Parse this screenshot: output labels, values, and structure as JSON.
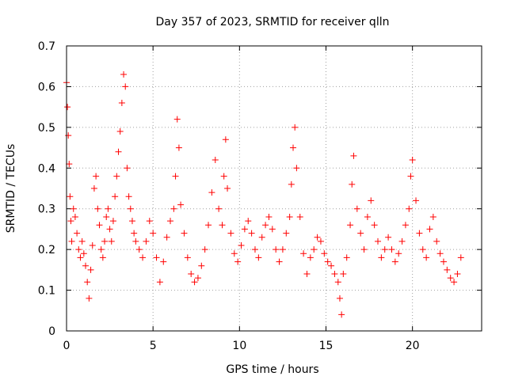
{
  "chart_data": {
    "type": "scatter",
    "title": "Day 357 of 2023, SRMTID for receiver qlln",
    "xlabel": "GPS time / hours",
    "ylabel": "SRMTID / TECUs",
    "xlim": [
      0,
      24
    ],
    "ylim": [
      0,
      0.7
    ],
    "xticks": [
      0,
      5,
      10,
      15,
      20
    ],
    "xtick_labels": [
      "0",
      "5",
      "10",
      "15",
      "20"
    ],
    "yticks": [
      0,
      0.1,
      0.2,
      0.3,
      0.4,
      0.5,
      0.6,
      0.7
    ],
    "ytick_labels": [
      "0",
      "0.1",
      "0.2",
      "0.3",
      "0.4",
      "0.5",
      "0.6",
      "0.7"
    ],
    "grid": true,
    "marker": "+",
    "series": [
      {
        "name": "SRMTID",
        "color": "#ff0000",
        "x": [
          0.0,
          0.05,
          0.1,
          0.15,
          0.2,
          0.25,
          0.3,
          0.4,
          0.5,
          0.6,
          0.7,
          0.8,
          0.9,
          1.0,
          1.1,
          1.2,
          1.3,
          1.4,
          1.5,
          1.6,
          1.7,
          1.8,
          1.9,
          2.0,
          2.1,
          2.2,
          2.3,
          2.4,
          2.5,
          2.6,
          2.7,
          2.8,
          2.9,
          3.0,
          3.1,
          3.2,
          3.3,
          3.4,
          3.5,
          3.6,
          3.7,
          3.8,
          3.9,
          4.0,
          4.2,
          4.4,
          4.6,
          4.8,
          5.0,
          5.2,
          5.4,
          5.6,
          5.8,
          6.0,
          6.2,
          6.3,
          6.4,
          6.5,
          6.6,
          6.8,
          7.0,
          7.2,
          7.4,
          7.6,
          7.8,
          8.0,
          8.2,
          8.4,
          8.6,
          8.8,
          9.0,
          9.1,
          9.2,
          9.3,
          9.5,
          9.7,
          9.9,
          10.1,
          10.3,
          10.5,
          10.7,
          10.9,
          11.1,
          11.3,
          11.5,
          11.7,
          11.9,
          12.1,
          12.3,
          12.5,
          12.7,
          12.9,
          13.0,
          13.1,
          13.2,
          13.3,
          13.5,
          13.7,
          13.9,
          14.1,
          14.3,
          14.5,
          14.7,
          14.9,
          15.1,
          15.3,
          15.5,
          15.7,
          15.8,
          15.9,
          16.0,
          16.2,
          16.4,
          16.5,
          16.6,
          16.8,
          17.0,
          17.2,
          17.4,
          17.6,
          17.8,
          18.0,
          18.2,
          18.4,
          18.6,
          18.8,
          19.0,
          19.2,
          19.4,
          19.6,
          19.8,
          19.9,
          20.0,
          20.2,
          20.4,
          20.6,
          20.8,
          21.0,
          21.2,
          21.4,
          21.6,
          21.8,
          22.0,
          22.2,
          22.4,
          22.6,
          22.8
        ],
        "y": [
          0.61,
          0.55,
          0.48,
          0.41,
          0.33,
          0.27,
          0.22,
          0.3,
          0.28,
          0.24,
          0.2,
          0.18,
          0.22,
          0.19,
          0.16,
          0.12,
          0.08,
          0.15,
          0.21,
          0.35,
          0.38,
          0.3,
          0.26,
          0.2,
          0.18,
          0.22,
          0.28,
          0.3,
          0.25,
          0.22,
          0.27,
          0.33,
          0.38,
          0.44,
          0.49,
          0.56,
          0.63,
          0.6,
          0.4,
          0.33,
          0.3,
          0.27,
          0.24,
          0.22,
          0.2,
          0.18,
          0.22,
          0.27,
          0.24,
          0.18,
          0.12,
          0.17,
          0.23,
          0.27,
          0.3,
          0.38,
          0.52,
          0.45,
          0.31,
          0.24,
          0.18,
          0.14,
          0.12,
          0.13,
          0.16,
          0.2,
          0.26,
          0.34,
          0.42,
          0.3,
          0.26,
          0.38,
          0.47,
          0.35,
          0.24,
          0.19,
          0.17,
          0.21,
          0.25,
          0.27,
          0.24,
          0.2,
          0.18,
          0.23,
          0.26,
          0.28,
          0.25,
          0.2,
          0.17,
          0.2,
          0.24,
          0.28,
          0.36,
          0.45,
          0.5,
          0.4,
          0.28,
          0.19,
          0.14,
          0.18,
          0.2,
          0.23,
          0.22,
          0.19,
          0.17,
          0.16,
          0.14,
          0.12,
          0.08,
          0.04,
          0.14,
          0.18,
          0.26,
          0.36,
          0.43,
          0.3,
          0.24,
          0.2,
          0.28,
          0.32,
          0.26,
          0.22,
          0.18,
          0.2,
          0.23,
          0.2,
          0.17,
          0.19,
          0.22,
          0.26,
          0.3,
          0.38,
          0.42,
          0.32,
          0.24,
          0.2,
          0.18,
          0.25,
          0.28,
          0.22,
          0.19,
          0.17,
          0.15,
          0.13,
          0.12,
          0.14,
          0.18
        ]
      }
    ]
  }
}
